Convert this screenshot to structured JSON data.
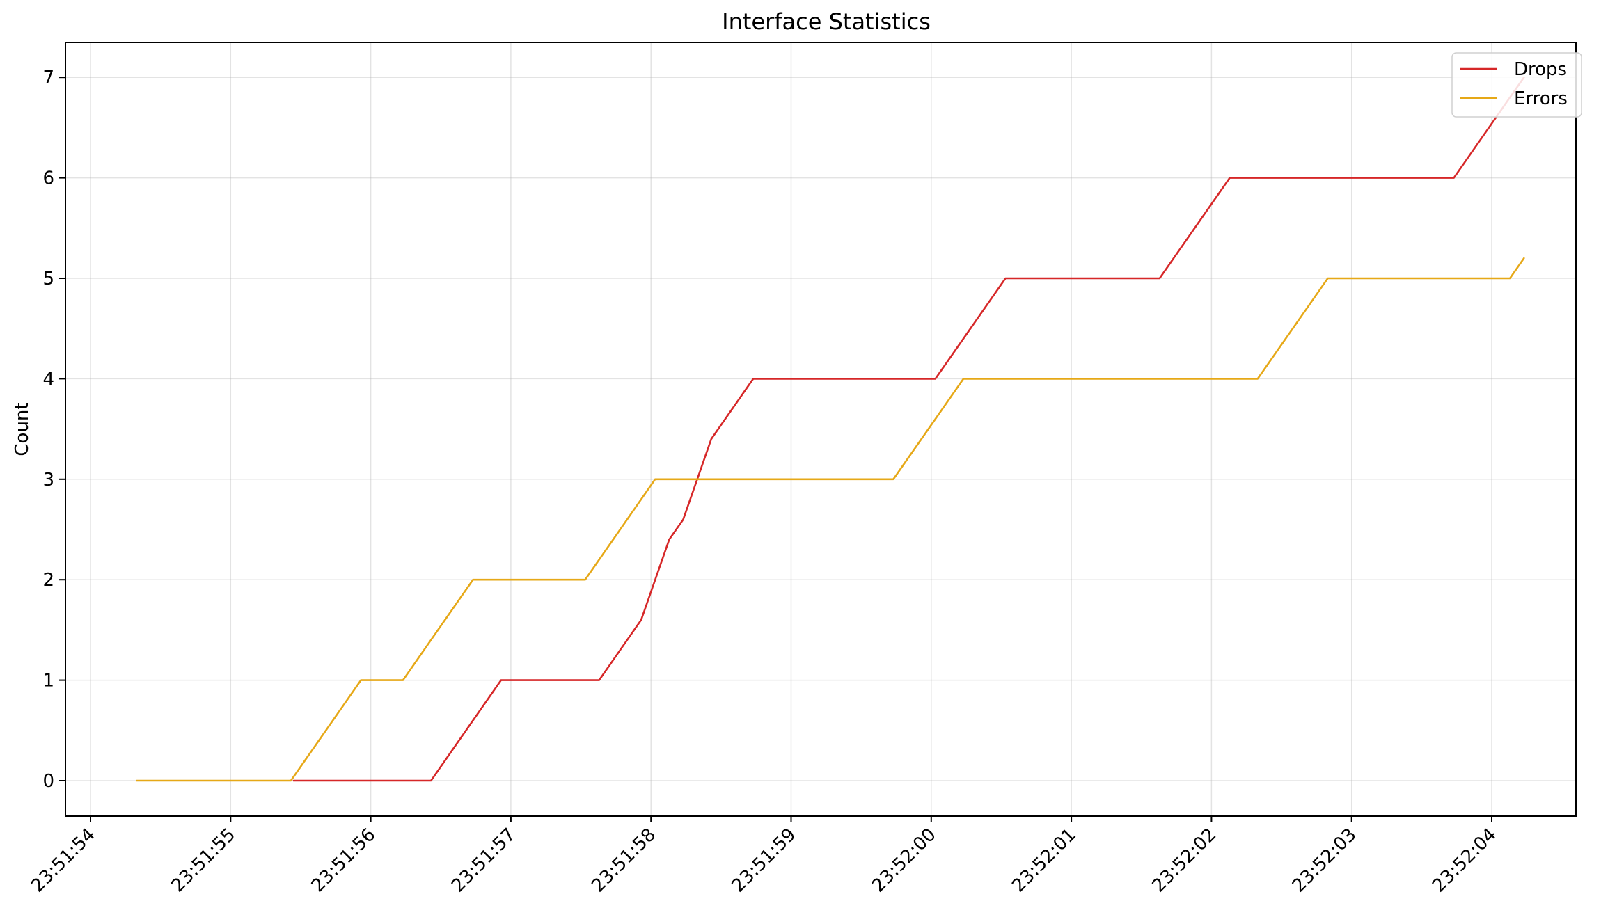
{
  "chart_data": {
    "type": "line",
    "title": "Interface Statistics",
    "xlabel": "",
    "ylabel": "Count",
    "x_ticks": [
      "23:51:54",
      "23:51:55",
      "23:51:56",
      "23:51:57",
      "23:51:58",
      "23:51:59",
      "23:52:00",
      "23:52:01",
      "23:52:02",
      "23:52:03",
      "23:52:04"
    ],
    "y_ticks": [
      0,
      1,
      2,
      3,
      4,
      5,
      6,
      7
    ],
    "xlim_seconds": [
      -0.35,
      10.55
    ],
    "ylim": [
      -0.35,
      7.35
    ],
    "grid": true,
    "legend_position": "top-right",
    "series": [
      {
        "name": "Drops",
        "color": "#d62728",
        "points": [
          [
            "23:51:55.45",
            0
          ],
          [
            "23:51:56.43",
            0
          ],
          [
            "23:51:56.93",
            1
          ],
          [
            "23:51:57.63",
            1
          ],
          [
            "23:51:57.93",
            1.6
          ],
          [
            "23:51:58.13",
            2.4
          ],
          [
            "23:51:58.23",
            2.6
          ],
          [
            "23:51:58.43",
            3.4
          ],
          [
            "23:51:58.73",
            4
          ],
          [
            "23:52:00.03",
            4
          ],
          [
            "23:52:00.53",
            5
          ],
          [
            "23:52:01.63",
            5
          ],
          [
            "23:52:02.13",
            6
          ],
          [
            "23:52:03.73",
            6
          ],
          [
            "23:52:04.23",
            7
          ]
        ]
      },
      {
        "name": "Errors",
        "color": "#e6a817",
        "points": [
          [
            "23:51:54.33",
            0
          ],
          [
            "23:51:55.43",
            0
          ],
          [
            "23:51:55.93",
            1
          ],
          [
            "23:51:56.23",
            1
          ],
          [
            "23:51:56.73",
            2
          ],
          [
            "23:51:57.53",
            2
          ],
          [
            "23:51:58.03",
            3
          ],
          [
            "23:51:59.73",
            3
          ],
          [
            "23:52:00.23",
            4
          ],
          [
            "23:52:02.33",
            4
          ],
          [
            "23:52:02.83",
            5
          ],
          [
            "23:52:04.13",
            5
          ],
          [
            "23:52:04.23",
            5.2
          ]
        ]
      }
    ]
  }
}
